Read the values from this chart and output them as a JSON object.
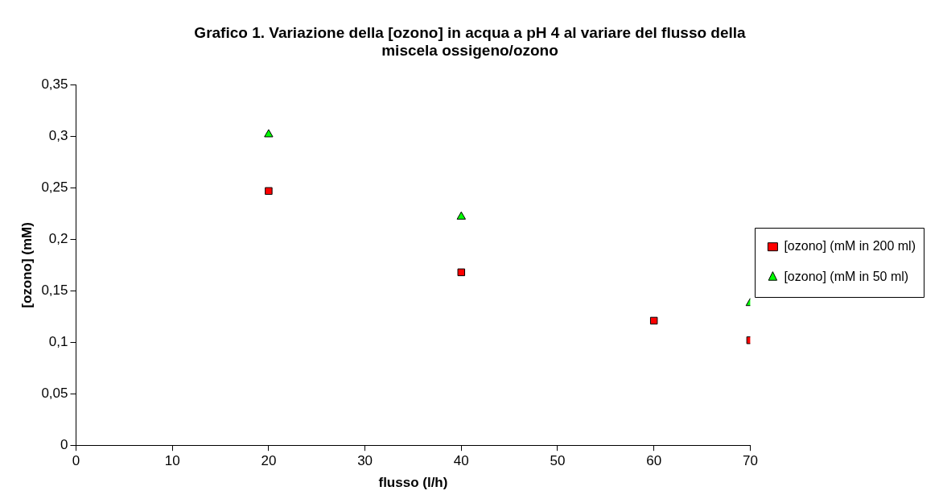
{
  "chart_data": {
    "type": "scatter",
    "title": [
      "Grafico 1. Variazione della [ozono] in acqua a pH 4 al variare del flusso della",
      "miscela ossigeno/ozono"
    ],
    "xlabel": "flusso (l/h)",
    "ylabel": "[ozono] (mM)",
    "series": [
      {
        "name": "[ozono] (mM in 200 ml)",
        "color": "#ff0000",
        "marker": "square",
        "x": [
          20,
          40,
          60,
          70
        ],
        "values": [
          0.247,
          0.168,
          0.121,
          0.102
        ]
      },
      {
        "name": "[ozono] (mM in 50 ml)",
        "color": "#00ff00",
        "marker": "triangle",
        "x": [
          20,
          40,
          70
        ],
        "values": [
          0.302,
          0.222,
          0.138
        ]
      }
    ],
    "xlim": [
      0,
      70
    ],
    "xticks": [
      0,
      10,
      20,
      30,
      40,
      50,
      60,
      70
    ],
    "ylim": [
      0,
      0.35
    ],
    "yticks": [
      {
        "value": 0,
        "label": "0"
      },
      {
        "value": 0.05,
        "label": "0,05"
      },
      {
        "value": 0.1,
        "label": "0,1"
      },
      {
        "value": 0.15,
        "label": "0,15"
      },
      {
        "value": 0.2,
        "label": "0,2"
      },
      {
        "value": 0.25,
        "label": "0,25"
      },
      {
        "value": 0.3,
        "label": "0,3"
      },
      {
        "value": 0.35,
        "label": "0,35"
      }
    ],
    "grid": false,
    "legend": "right"
  }
}
